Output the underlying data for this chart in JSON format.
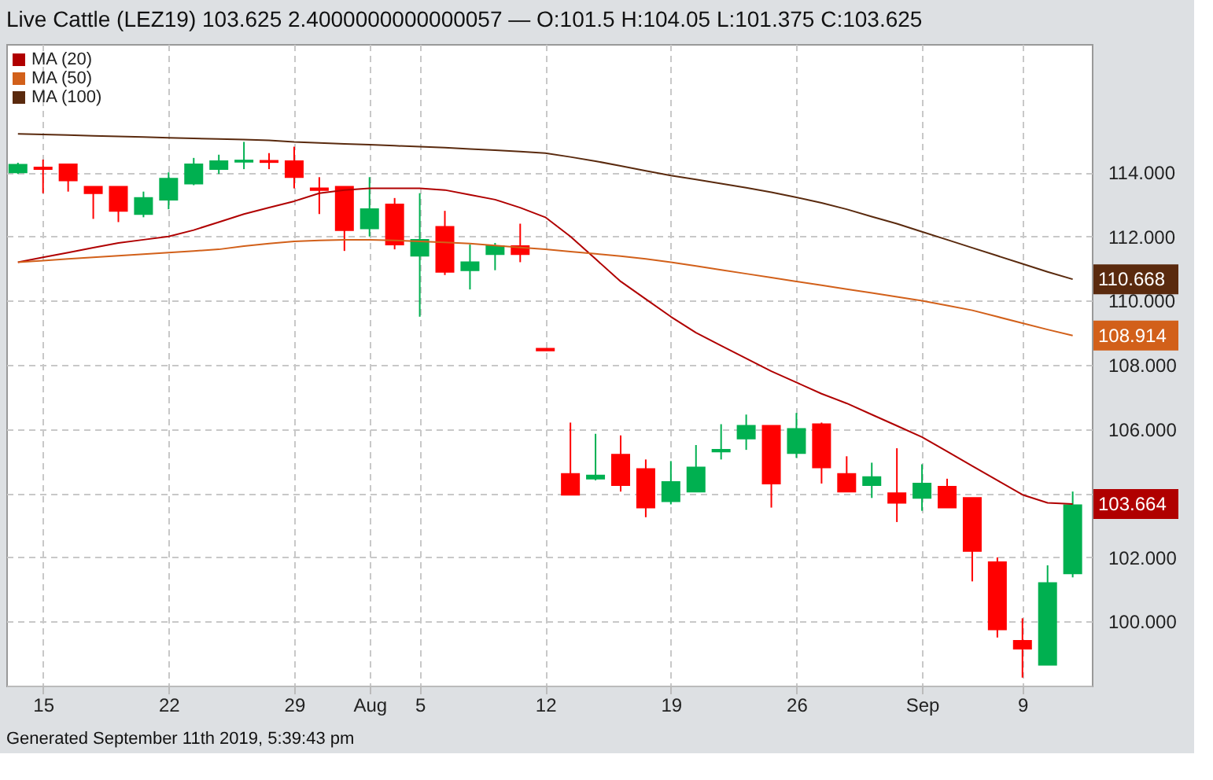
{
  "chart_data": {
    "type": "candlestick",
    "title": "Live Cattle (LEZ19) 103.625 2.4000000000000057 — O:101.5 H:104.05 L:101.375 C:103.625",
    "categories": [
      null,
      "15",
      null,
      null,
      null,
      null,
      "22",
      null,
      null,
      null,
      null,
      "29",
      null,
      null,
      "Aug",
      null,
      "5",
      null,
      null,
      null,
      null,
      "12",
      null,
      null,
      null,
      null,
      "19",
      null,
      null,
      null,
      null,
      "26",
      null,
      null,
      null,
      null,
      "Sep",
      null,
      null,
      null,
      "9",
      null,
      null
    ],
    "ohlc": [
      [
        114.0,
        114.3,
        113.95,
        114.24
      ],
      [
        114.15,
        114.4,
        113.35,
        114.1
      ],
      [
        114.25,
        114.25,
        113.4,
        113.75
      ],
      [
        113.55,
        113.55,
        112.55,
        113.35
      ],
      [
        113.55,
        113.55,
        112.45,
        112.8
      ],
      [
        112.7,
        113.4,
        112.6,
        113.2
      ],
      [
        113.15,
        114.0,
        112.85,
        113.8
      ],
      [
        113.65,
        114.45,
        113.6,
        114.25
      ],
      [
        114.1,
        114.55,
        113.95,
        114.35
      ],
      [
        114.33,
        114.95,
        114.1,
        114.37
      ],
      [
        114.36,
        114.6,
        114.1,
        114.32
      ],
      [
        114.35,
        114.8,
        113.5,
        113.85
      ],
      [
        113.5,
        113.85,
        112.7,
        113.45
      ],
      [
        113.55,
        113.55,
        111.55,
        112.2
      ],
      [
        112.25,
        113.85,
        112.0,
        112.85
      ],
      [
        113.0,
        113.2,
        111.6,
        111.75
      ],
      [
        111.4,
        113.35,
        109.5,
        111.9
      ],
      [
        112.3,
        112.8,
        110.8,
        110.9
      ],
      [
        110.95,
        111.75,
        110.35,
        111.2
      ],
      [
        111.45,
        111.8,
        110.95,
        111.7
      ],
      [
        111.7,
        112.4,
        111.2,
        111.45
      ],
      [
        108.5,
        108.5,
        108.45,
        108.45
      ],
      [
        104.6,
        106.2,
        103.95,
        103.95
      ],
      [
        104.45,
        105.85,
        104.4,
        104.55
      ],
      [
        105.2,
        105.8,
        104.05,
        104.25
      ],
      [
        104.75,
        105.05,
        103.25,
        103.55
      ],
      [
        103.75,
        105.0,
        103.65,
        104.35
      ],
      [
        104.05,
        105.5,
        104.05,
        104.8
      ],
      [
        105.3,
        106.15,
        105.05,
        105.35
      ],
      [
        105.7,
        106.45,
        105.35,
        106.1
      ],
      [
        106.1,
        106.1,
        103.55,
        104.3
      ],
      [
        105.25,
        106.5,
        105.1,
        106.0
      ],
      [
        106.15,
        106.2,
        104.3,
        104.8
      ],
      [
        104.6,
        105.15,
        104.05,
        104.05
      ],
      [
        104.25,
        104.95,
        103.85,
        104.5
      ],
      [
        104.0,
        105.4,
        103.1,
        103.7
      ],
      [
        103.85,
        104.9,
        103.45,
        104.3
      ],
      [
        104.2,
        104.45,
        103.55,
        103.55
      ],
      [
        103.85,
        103.85,
        101.25,
        102.2
      ],
      [
        101.85,
        102.0,
        99.5,
        99.75
      ],
      [
        99.4,
        100.1,
        98.25,
        99.15
      ],
      [
        98.65,
        101.75,
        98.65,
        101.2
      ],
      [
        101.5,
        104.05,
        101.375,
        103.625
      ]
    ],
    "colors": [
      "#00b050",
      "#ff0000",
      "#ff0000",
      "#ff0000",
      "#ff0000",
      "#00b050",
      "#00b050",
      "#00b050",
      "#00b050",
      "#00b050",
      "#ff0000",
      "#ff0000",
      "#ff0000",
      "#ff0000",
      "#00b050",
      "#ff0000",
      "#00b050",
      "#ff0000",
      "#00b050",
      "#00b050",
      "#ff0000",
      "#ff0000",
      "#ff0000",
      "#00b050",
      "#ff0000",
      "#ff0000",
      "#00b050",
      "#00b050",
      "#00b050",
      "#00b050",
      "#ff0000",
      "#00b050",
      "#ff0000",
      "#ff0000",
      "#00b050",
      "#ff0000",
      "#00b050",
      "#ff0000",
      "#ff0000",
      "#ff0000",
      "#ff0000",
      "#00b050",
      "#00b050"
    ],
    "series": [
      {
        "name": "MA (20)",
        "type": "line",
        "color": "#b00000",
        "values": [
          111.2,
          111.35,
          111.5,
          111.65,
          111.8,
          111.9,
          112.0,
          112.2,
          112.45,
          112.7,
          112.9,
          113.1,
          113.35,
          113.45,
          113.5,
          113.5,
          113.5,
          113.45,
          113.3,
          113.15,
          112.9,
          112.6,
          112.0,
          111.3,
          110.6,
          110.05,
          109.5,
          109.0,
          108.6,
          108.2,
          107.8,
          107.45,
          107.1,
          106.8,
          106.45,
          106.1,
          105.75,
          105.3,
          104.85,
          104.4,
          103.95,
          103.7,
          103.664
        ],
        "value_labels": [
          null,
          null,
          null,
          null,
          null,
          null,
          null,
          null,
          null,
          null,
          null,
          null,
          null,
          null,
          null,
          null,
          null,
          null,
          null,
          null,
          null,
          null,
          null,
          null,
          null,
          null,
          null,
          null,
          null,
          null,
          null,
          null,
          null,
          null,
          null,
          null,
          null,
          null,
          null,
          null,
          null,
          null,
          "103.664"
        ]
      },
      {
        "name": "MA (50)",
        "type": "line",
        "color": "#d2601a",
        "values": [
          111.2,
          111.25,
          111.3,
          111.35,
          111.4,
          111.45,
          111.5,
          111.55,
          111.6,
          111.7,
          111.78,
          111.85,
          111.88,
          111.9,
          111.9,
          111.88,
          111.85,
          111.82,
          111.78,
          111.72,
          111.66,
          111.6,
          111.53,
          111.46,
          111.39,
          111.3,
          111.2,
          111.08,
          110.96,
          110.84,
          110.72,
          110.6,
          110.48,
          110.36,
          110.24,
          110.12,
          110.0,
          109.85,
          109.7,
          109.5,
          109.3,
          109.1,
          108.914
        ],
        "value_labels": [
          null,
          null,
          null,
          null,
          null,
          null,
          null,
          null,
          null,
          null,
          null,
          null,
          null,
          null,
          null,
          null,
          null,
          null,
          null,
          null,
          null,
          null,
          null,
          null,
          null,
          null,
          null,
          null,
          null,
          null,
          null,
          null,
          null,
          null,
          null,
          null,
          null,
          null,
          null,
          null,
          null,
          null,
          "108.914"
        ]
      },
      {
        "name": "MA (100)",
        "type": "line",
        "color": "#5a2a0e",
        "values": [
          115.2,
          115.18,
          115.16,
          115.14,
          115.12,
          115.1,
          115.08,
          115.06,
          115.04,
          115.02,
          115.0,
          114.95,
          114.92,
          114.89,
          114.86,
          114.83,
          114.8,
          114.77,
          114.73,
          114.69,
          114.65,
          114.6,
          114.48,
          114.35,
          114.2,
          114.05,
          113.9,
          113.78,
          113.65,
          113.52,
          113.38,
          113.22,
          113.05,
          112.85,
          112.62,
          112.4,
          112.15,
          111.9,
          111.65,
          111.4,
          111.15,
          110.9,
          110.668
        ],
        "value_labels": [
          null,
          null,
          null,
          null,
          null,
          null,
          null,
          null,
          null,
          null,
          null,
          null,
          null,
          null,
          null,
          null,
          null,
          null,
          null,
          null,
          null,
          null,
          null,
          null,
          null,
          null,
          null,
          null,
          null,
          null,
          null,
          null,
          null,
          null,
          null,
          null,
          null,
          null,
          null,
          null,
          null,
          null,
          "110.668"
        ]
      }
    ],
    "ylim": [
      98,
      118
    ],
    "yticks": [
      {
        "value": 100,
        "label": "100.000"
      },
      {
        "value": 102,
        "label": "102.000"
      },
      {
        "value": 104,
        "label": null
      },
      {
        "value": 106,
        "label": "106.000"
      },
      {
        "value": 108,
        "label": "108.000"
      },
      {
        "value": 110,
        "label": "110.000"
      },
      {
        "value": 112,
        "label": "112.000"
      },
      {
        "value": 114,
        "label": "114.000"
      }
    ],
    "grid": true,
    "legend": "top left",
    "annotations": [
      "Generated September 11th 2019, 5:39:43 pm"
    ]
  }
}
